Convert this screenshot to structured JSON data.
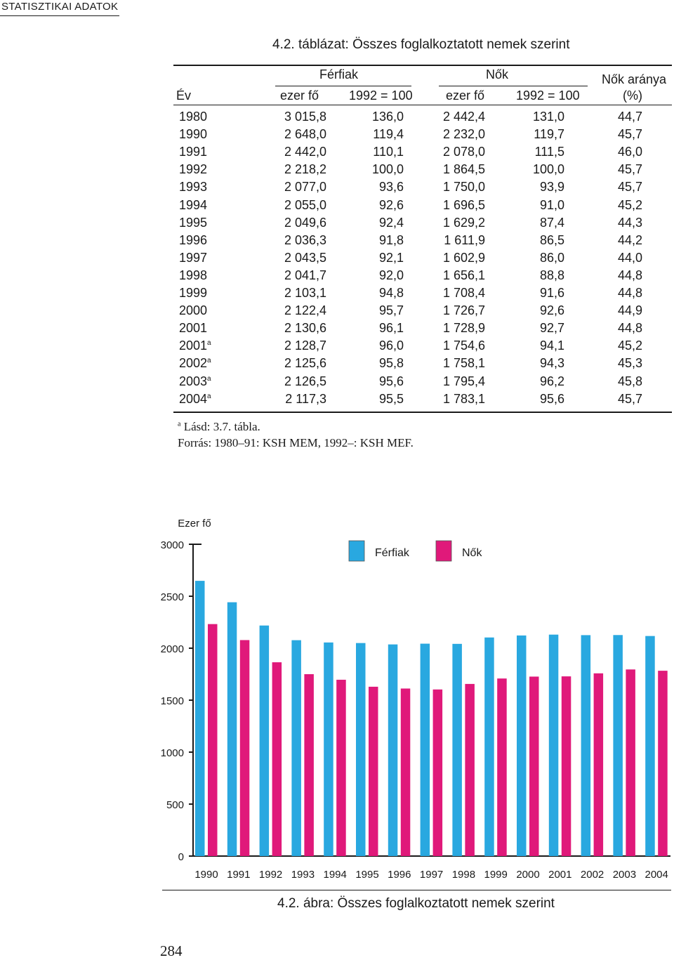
{
  "header": {
    "label": "STATISZTIKAI ADATOK"
  },
  "table": {
    "title": "4.2. táblázat: Összes foglalkoztatott nemek szerint",
    "group_men": "Férfiak",
    "group_women": "Nők",
    "col_year": "Év",
    "col_thousand": "ezer fő",
    "col_index": "1992 = 100",
    "col_share_line1": "Nők aránya",
    "col_share_line2": "(%)",
    "rows": [
      {
        "year": "1980",
        "sup": "",
        "men": "3 015,8",
        "men_idx": "136,0",
        "women": "2 442,4",
        "women_idx": "131,0",
        "share": "44,7"
      },
      {
        "year": "1990",
        "sup": "",
        "men": "2 648,0",
        "men_idx": "119,4",
        "women": "2 232,0",
        "women_idx": "119,7",
        "share": "45,7"
      },
      {
        "year": "1991",
        "sup": "",
        "men": "2 442,0",
        "men_idx": "110,1",
        "women": "2 078,0",
        "women_idx": "111,5",
        "share": "46,0"
      },
      {
        "year": "1992",
        "sup": "",
        "men": "2 218,2",
        "men_idx": "100,0",
        "women": "1 864,5",
        "women_idx": "100,0",
        "share": "45,7"
      },
      {
        "year": "1993",
        "sup": "",
        "men": "2 077,0",
        "men_idx": "93,6",
        "women": "1 750,0",
        "women_idx": "93,9",
        "share": "45,7"
      },
      {
        "year": "1994",
        "sup": "",
        "men": "2 055,0",
        "men_idx": "92,6",
        "women": "1 696,5",
        "women_idx": "91,0",
        "share": "45,2"
      },
      {
        "year": "1995",
        "sup": "",
        "men": "2 049,6",
        "men_idx": "92,4",
        "women": "1 629,2",
        "women_idx": "87,4",
        "share": "44,3"
      },
      {
        "year": "1996",
        "sup": "",
        "men": "2 036,3",
        "men_idx": "91,8",
        "women": "1 611,9",
        "women_idx": "86,5",
        "share": "44,2"
      },
      {
        "year": "1997",
        "sup": "",
        "men": "2 043,5",
        "men_idx": "92,1",
        "women": "1 602,9",
        "women_idx": "86,0",
        "share": "44,0"
      },
      {
        "year": "1998",
        "sup": "",
        "men": "2 041,7",
        "men_idx": "92,0",
        "women": "1 656,1",
        "women_idx": "88,8",
        "share": "44,8"
      },
      {
        "year": "1999",
        "sup": "",
        "men": "2 103,1",
        "men_idx": "94,8",
        "women": "1 708,4",
        "women_idx": "91,6",
        "share": "44,8"
      },
      {
        "year": "2000",
        "sup": "",
        "men": "2 122,4",
        "men_idx": "95,7",
        "women": "1 726,7",
        "women_idx": "92,6",
        "share": "44,9"
      },
      {
        "year": "2001",
        "sup": "",
        "men": "2 130,6",
        "men_idx": "96,1",
        "women": "1 728,9",
        "women_idx": "92,7",
        "share": "44,8"
      },
      {
        "year": "2001",
        "sup": "a",
        "men": "2 128,7",
        "men_idx": "96,0",
        "women": "1 754,6",
        "women_idx": "94,1",
        "share": "45,2"
      },
      {
        "year": "2002",
        "sup": "a",
        "men": "2 125,6",
        "men_idx": "95,8",
        "women": "1 758,1",
        "women_idx": "94,3",
        "share": "45,3"
      },
      {
        "year": "2003",
        "sup": "a",
        "men": "2 126,5",
        "men_idx": "95,6",
        "women": "1 795,4",
        "women_idx": "96,2",
        "share": "45,8"
      },
      {
        "year": "2004",
        "sup": "a",
        "men": "2 117,3",
        "men_idx": "95,5",
        "women": "1 783,1",
        "women_idx": "95,6",
        "share": "45,7"
      }
    ]
  },
  "notes": {
    "footnote_mark": "a",
    "footnote": "Lásd: 3.7. tábla.",
    "source": "Forrás: 1980–91: KSH MEM, 1992–: KSH MEF."
  },
  "figure": {
    "caption": "4.2. ábra: Összes foglalkoztatott nemek szerint",
    "page_number": "284"
  },
  "chart_data": {
    "type": "bar",
    "title": "",
    "xlabel": "",
    "ylabel": "Ezer fő",
    "ylim": [
      0,
      3000
    ],
    "yticks": [
      0,
      500,
      1000,
      1500,
      2000,
      2500,
      3000
    ],
    "grid": false,
    "legend": "top",
    "categories": [
      "1990",
      "1991",
      "1992",
      "1993",
      "1994",
      "1995",
      "1996",
      "1997",
      "1998",
      "1999",
      "2000",
      "2001",
      "2002",
      "2003",
      "2004"
    ],
    "series": [
      {
        "name": "Férfiak",
        "color": "#29a8e0",
        "values": [
          2648.0,
          2442.0,
          2218.2,
          2077.0,
          2055.0,
          2049.6,
          2036.3,
          2043.5,
          2041.7,
          2103.1,
          2122.4,
          2130.6,
          2125.6,
          2126.5,
          2117.3
        ]
      },
      {
        "name": "Nők",
        "color": "#e0197a",
        "values": [
          2232.0,
          2078.0,
          1864.5,
          1750.0,
          1696.5,
          1629.2,
          1611.9,
          1602.9,
          1656.1,
          1708.4,
          1726.7,
          1728.9,
          1758.1,
          1795.4,
          1783.1
        ]
      }
    ]
  }
}
